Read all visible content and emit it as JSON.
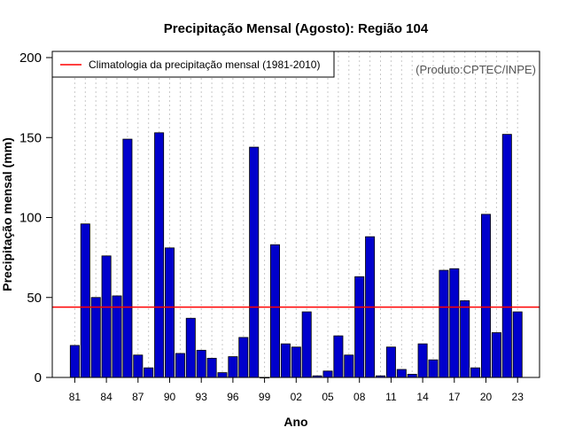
{
  "chart_data": {
    "type": "bar",
    "title": "Precipitação Mensal (Agosto): Região 104",
    "xlabel": "Ano",
    "ylabel": "Precipitação mensal (mm)",
    "credit": "(Produto:CPTEC/INPE)",
    "ylim": [
      0,
      200
    ],
    "yticks": [
      0,
      50,
      100,
      150,
      200
    ],
    "grid": true,
    "categories": [
      "81",
      "82",
      "83",
      "84",
      "85",
      "86",
      "87",
      "88",
      "89",
      "90",
      "91",
      "92",
      "93",
      "94",
      "95",
      "96",
      "97",
      "98",
      "99",
      "00",
      "01",
      "02",
      "03",
      "04",
      "05",
      "06",
      "07",
      "08",
      "09",
      "10",
      "11",
      "12",
      "13",
      "14",
      "15",
      "16",
      "17",
      "18",
      "19",
      "20",
      "21",
      "22",
      "23"
    ],
    "xtick_labels": [
      "81",
      "84",
      "87",
      "90",
      "93",
      "96",
      "99",
      "02",
      "05",
      "08",
      "11",
      "14",
      "17",
      "20",
      "23"
    ],
    "series": [
      {
        "name": "Precipitação mensal",
        "color": "#0000cc",
        "values": [
          20,
          96,
          50,
          76,
          51,
          149,
          14,
          6,
          153,
          81,
          15,
          37,
          17,
          12,
          3,
          13,
          25,
          144,
          0,
          83,
          21,
          19,
          41,
          1,
          4,
          26,
          14,
          63,
          88,
          1,
          19,
          5,
          2,
          21,
          11,
          67,
          68,
          48,
          6,
          102,
          28,
          152,
          41
        ]
      }
    ],
    "reference_line": {
      "label": "Climatologia da precipitação mensal (1981-2010)",
      "value": 44,
      "color": "#ff0000"
    },
    "legend_position": "top-left"
  }
}
